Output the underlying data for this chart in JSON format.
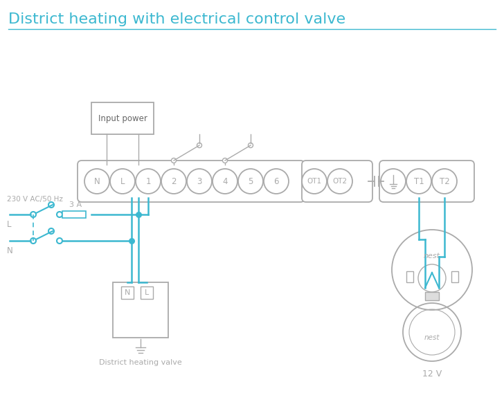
{
  "title": "District heating with electrical control valve",
  "title_color": "#3cb8d0",
  "title_fontsize": 16,
  "bg_color": "#ffffff",
  "wire_color": "#3cb8d0",
  "box_color": "#aaaaaa",
  "terminal_labels": [
    "N",
    "L",
    "1",
    "2",
    "3",
    "4",
    "5",
    "6"
  ],
  "ot_labels": [
    "OT1",
    "OT2"
  ],
  "right_labels": [
    "T1",
    "T2"
  ],
  "label_230v": "230 V AC/50 Hz",
  "label_L": "L",
  "label_N": "N",
  "label_3A": "3 A",
  "label_input_power": "Input power",
  "label_district": "District heating valve",
  "label_12v": "12 V",
  "label_nest_top": "nest",
  "label_nest_bottom": "nest"
}
